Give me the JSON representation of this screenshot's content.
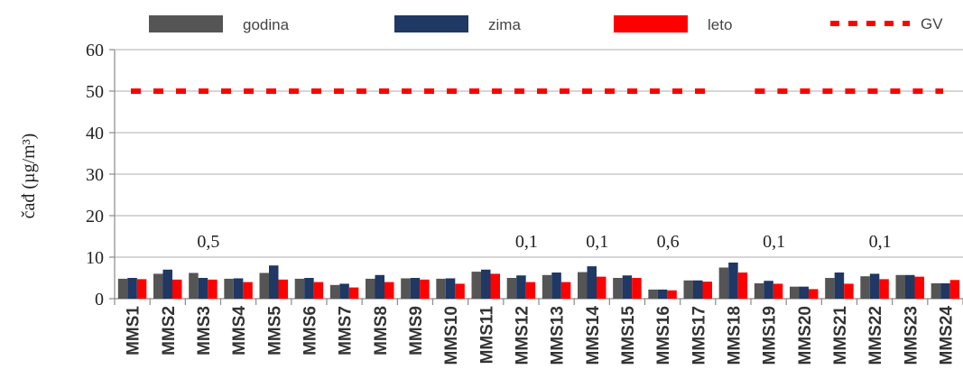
{
  "chart_data": {
    "type": "bar",
    "title": "",
    "xlabel": "",
    "ylabel": "čađ (µg/m³)",
    "ylim": [
      0,
      60
    ],
    "yticks": [
      0,
      10,
      20,
      30,
      40,
      50,
      60
    ],
    "grid": true,
    "legend_position": "top",
    "categories": [
      "MMS1",
      "MMS2",
      "MMS3",
      "MMS4",
      "MMS5",
      "MMS6",
      "MMS7",
      "MMS8",
      "MMS9",
      "MMS10",
      "MMS11",
      "MMS12",
      "MMS13",
      "MMS14",
      "MMS15",
      "MMS16",
      "MMS17",
      "MMS18",
      "MMS19",
      "MMS20",
      "MMS21",
      "MMS22",
      "MMS23",
      "MMS24"
    ],
    "series": [
      {
        "name": "godina",
        "color": "#555555",
        "values": [
          4.8,
          6.0,
          6.2,
          4.8,
          6.2,
          4.8,
          3.3,
          4.8,
          4.9,
          4.8,
          6.5,
          5.0,
          5.7,
          6.4,
          5.0,
          2.2,
          4.4,
          7.5,
          3.7,
          2.9,
          5.0,
          5.4,
          5.7,
          3.7
        ]
      },
      {
        "name": "zima",
        "color": "#1f3864",
        "values": [
          5.0,
          7.0,
          5.0,
          4.9,
          8.0,
          5.0,
          3.6,
          5.7,
          5.0,
          4.9,
          7.0,
          5.6,
          6.3,
          7.8,
          5.6,
          2.2,
          4.4,
          8.7,
          4.3,
          2.9,
          6.3,
          6.0,
          5.7,
          3.7
        ]
      },
      {
        "name": "leto",
        "color": "#ff0000",
        "values": [
          4.7,
          4.6,
          4.6,
          4.0,
          4.6,
          4.0,
          2.7,
          4.0,
          4.6,
          3.6,
          6.0,
          4.0,
          4.0,
          5.3,
          5.0,
          2.0,
          4.1,
          6.3,
          3.6,
          2.3,
          3.6,
          4.7,
          5.3,
          4.5
        ]
      }
    ],
    "reference_line": {
      "name": "GV",
      "value": 50,
      "color": "#ff0000",
      "style": "dashed"
    },
    "annotations": [
      {
        "text": "0,5",
        "category": "MMS3"
      },
      {
        "text": "0,1",
        "category": "MMS12"
      },
      {
        "text": "0,1",
        "category": "MMS14"
      },
      {
        "text": "0,6",
        "category": "MMS16"
      },
      {
        "text": "0,1",
        "category": "MMS19"
      },
      {
        "text": "0,1",
        "category": "MMS22"
      }
    ]
  }
}
